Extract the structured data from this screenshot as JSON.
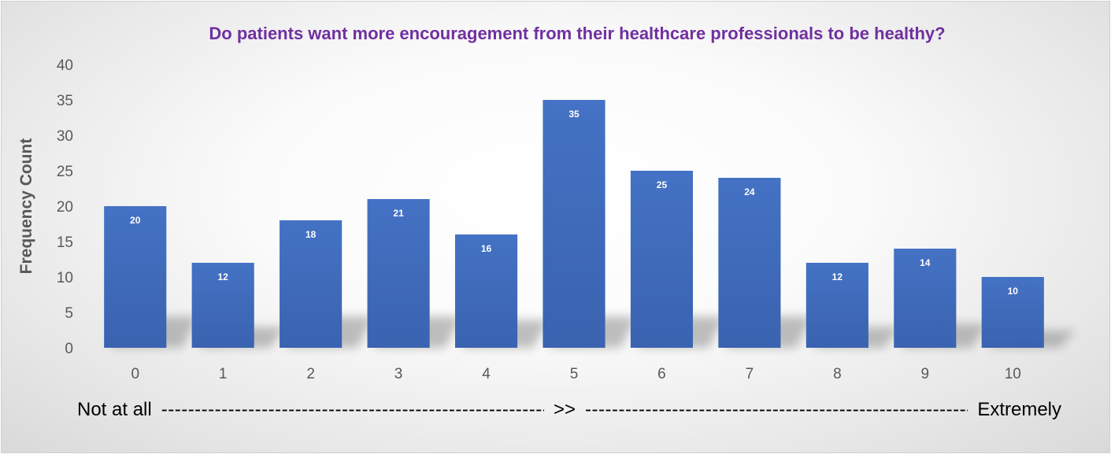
{
  "chart_data": {
    "type": "bar",
    "title": "Do patients want more encouragement from their healthcare professionals to be healthy?",
    "ylabel": "Frequency Count",
    "xlabel": "",
    "categories": [
      "0",
      "1",
      "2",
      "3",
      "4",
      "5",
      "6",
      "7",
      "8",
      "9",
      "10"
    ],
    "values": [
      20,
      12,
      18,
      21,
      16,
      35,
      25,
      24,
      12,
      14,
      10
    ],
    "ylim": [
      0,
      40
    ],
    "yticks": [
      0,
      5,
      10,
      15,
      20,
      25,
      30,
      35,
      40
    ],
    "grid": false,
    "legend": "none",
    "bar_color": "#4472c4",
    "title_color": "#7030a0"
  },
  "footer": {
    "left": "Not at all",
    "middle": ">>",
    "right": "Extremely"
  }
}
